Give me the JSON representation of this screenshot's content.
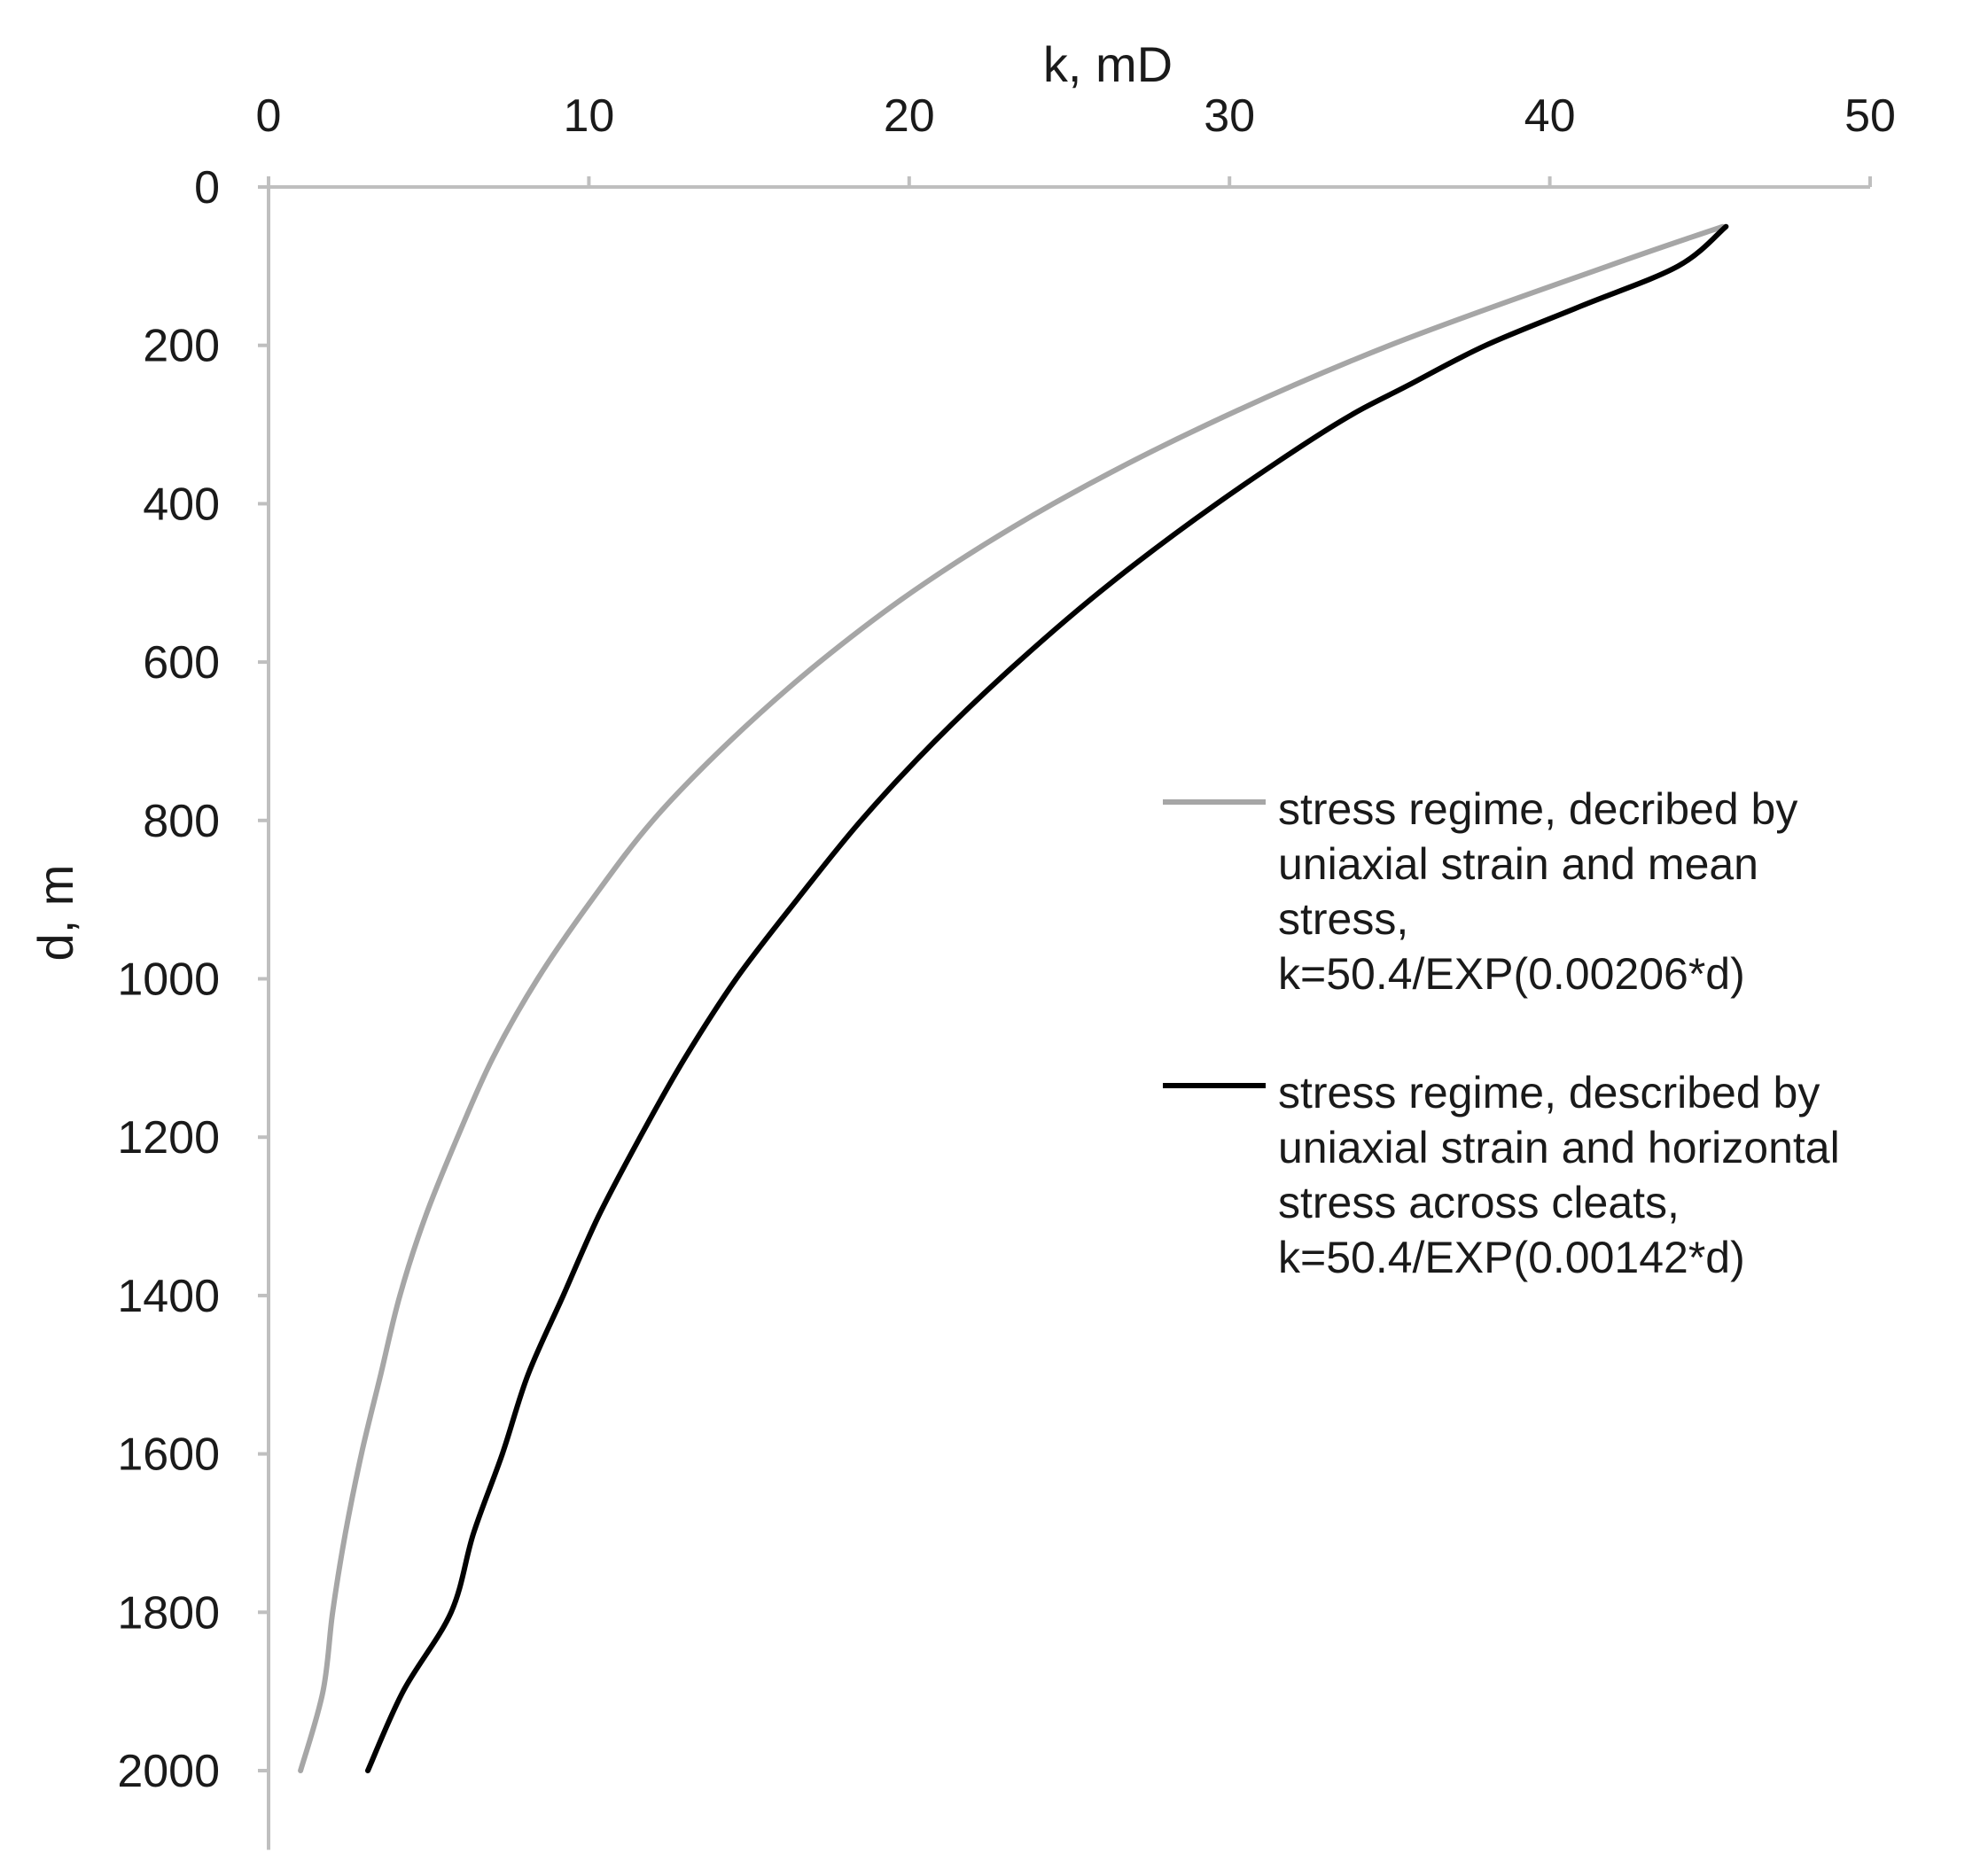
{
  "chart_data": {
    "type": "line",
    "xlabel": "k, mD",
    "ylabel": "d, m",
    "x_axis_position": "top",
    "y_axis_inverted": true,
    "xlim": [
      0,
      50
    ],
    "ylim": [
      0,
      2100
    ],
    "x_ticks": [
      0,
      10,
      20,
      30,
      40,
      50
    ],
    "y_ticks": [
      0,
      200,
      400,
      600,
      800,
      1000,
      1200,
      1400,
      1600,
      1800,
      2000
    ],
    "grid": false,
    "legend_position": "right",
    "series": [
      {
        "name": "stress regime, decribed by uniaxial strain and mean stress, k=50.4/EXP(0.00206*d)",
        "legend_lines": [
          "stress regime, decribed by",
          "uniaxial strain and mean",
          "stress,",
          "k=50.4/EXP(0.00206*d)"
        ],
        "color": "#a6a6a6",
        "points": [
          [
            45.4,
            50
          ],
          [
            41.8,
            100
          ],
          [
            35.0,
            200
          ],
          [
            29.3,
            300
          ],
          [
            24.5,
            400
          ],
          [
            20.5,
            500
          ],
          [
            17.2,
            600
          ],
          [
            14.4,
            700
          ],
          [
            12.0,
            800
          ],
          [
            10.1,
            900
          ],
          [
            8.4,
            1000
          ],
          [
            7.0,
            1100
          ],
          [
            5.9,
            1200
          ],
          [
            4.9,
            1300
          ],
          [
            4.1,
            1400
          ],
          [
            3.5,
            1500
          ],
          [
            2.9,
            1600
          ],
          [
            2.4,
            1700
          ],
          [
            2.0,
            1800
          ],
          [
            1.7,
            1900
          ],
          [
            1.0,
            2000
          ]
        ]
      },
      {
        "name": "stress regime, described by uniaxial strain and horizontal stress across cleats, k=50.4/EXP(0.00142*d)",
        "legend_lines": [
          "stress regime, described by",
          "uniaxial strain and horizontal",
          "stress across cleats,",
          "k=50.4/EXP(0.00142*d)"
        ],
        "color": "#000000",
        "points": [
          [
            45.5,
            50
          ],
          [
            44.0,
            100
          ],
          [
            41.0,
            150
          ],
          [
            38.0,
            200
          ],
          [
            35.6,
            250
          ],
          [
            33.3,
            300
          ],
          [
            29.6,
            400
          ],
          [
            26.3,
            500
          ],
          [
            23.4,
            600
          ],
          [
            20.8,
            700
          ],
          [
            18.5,
            800
          ],
          [
            16.5,
            900
          ],
          [
            14.6,
            1000
          ],
          [
            13.0,
            1100
          ],
          [
            11.6,
            1200
          ],
          [
            10.3,
            1300
          ],
          [
            9.2,
            1400
          ],
          [
            8.1,
            1500
          ],
          [
            7.3,
            1600
          ],
          [
            6.4,
            1700
          ],
          [
            5.7,
            1800
          ],
          [
            4.2,
            1900
          ],
          [
            3.1,
            2000
          ]
        ]
      }
    ]
  }
}
